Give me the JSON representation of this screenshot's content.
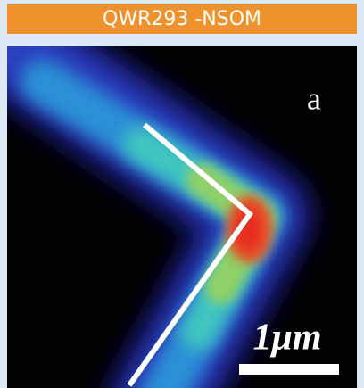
{
  "header": {
    "title": "QWR293 -NSOM"
  },
  "image": {
    "panel_label": "a",
    "scale_label": "1μm"
  }
}
